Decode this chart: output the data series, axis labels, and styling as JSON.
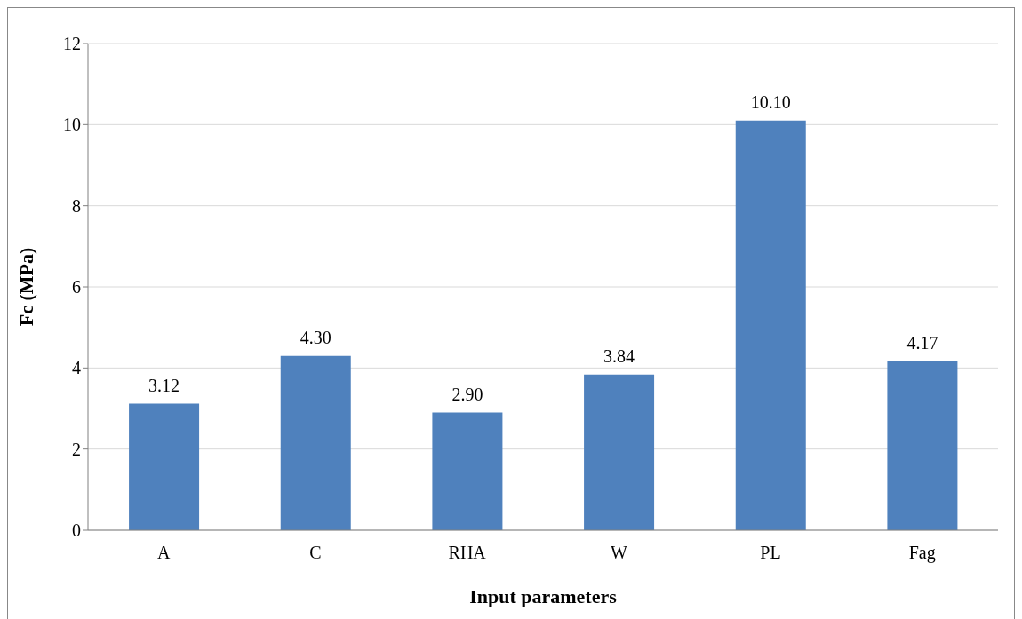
{
  "chart_data": {
    "type": "bar",
    "xlabel": "Input parameters",
    "ylabel": "Fc (MPa)",
    "categories": [
      "A",
      "C",
      "RHA",
      "W",
      "PL",
      "Fag"
    ],
    "values": [
      3.12,
      4.3,
      2.9,
      3.84,
      10.1,
      4.17
    ],
    "value_labels": [
      "3.12",
      "4.30",
      "2.90",
      "3.84",
      "10.10",
      "4.17"
    ],
    "color": "#4f81bd",
    "ylim": [
      0,
      12
    ],
    "yticks": [
      0,
      2,
      4,
      6,
      8,
      10,
      12
    ],
    "grid": "y"
  }
}
